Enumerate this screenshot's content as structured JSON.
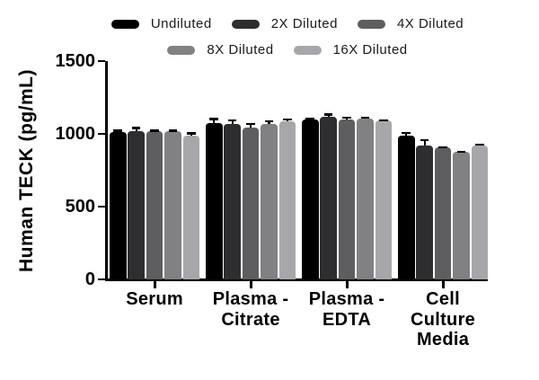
{
  "chart_data": {
    "type": "bar",
    "title": "",
    "ylabel": "Human TECK (pg/mL)",
    "xlabel": "",
    "ylim": [
      0,
      1500
    ],
    "yticks": [
      0,
      500,
      1000,
      1500
    ],
    "grid": false,
    "legend_position": "top",
    "error_bars": "upper SD whiskers, black",
    "categories": [
      "Serum",
      "Plasma -\nCitrate",
      "Plasma -\nEDTA",
      "Cell\nCulture\nMedia"
    ],
    "series": [
      {
        "name": "Undiluted",
        "color": "#000000",
        "values": [
          1010,
          1075,
          1100,
          990
        ],
        "errors": [
          18,
          35,
          10,
          22
        ]
      },
      {
        "name": "2X Diluted",
        "color": "#2e2e30",
        "values": [
          1020,
          1065,
          1120,
          920
        ],
        "errors": [
          28,
          35,
          20,
          45
        ]
      },
      {
        "name": "4X Diluted",
        "color": "#5e5e60",
        "values": [
          1020,
          1045,
          1100,
          905
        ],
        "errors": [
          8,
          32,
          18,
          10
        ]
      },
      {
        "name": "8X Diluted",
        "color": "#818183",
        "values": [
          1020,
          1070,
          1105,
          875
        ],
        "errors": [
          10,
          25,
          12,
          8
        ]
      },
      {
        "name": "16X Diluted",
        "color": "#a7a7ab",
        "values": [
          985,
          1085,
          1095,
          920
        ],
        "errors": [
          25,
          20,
          6,
          15
        ]
      }
    ]
  }
}
